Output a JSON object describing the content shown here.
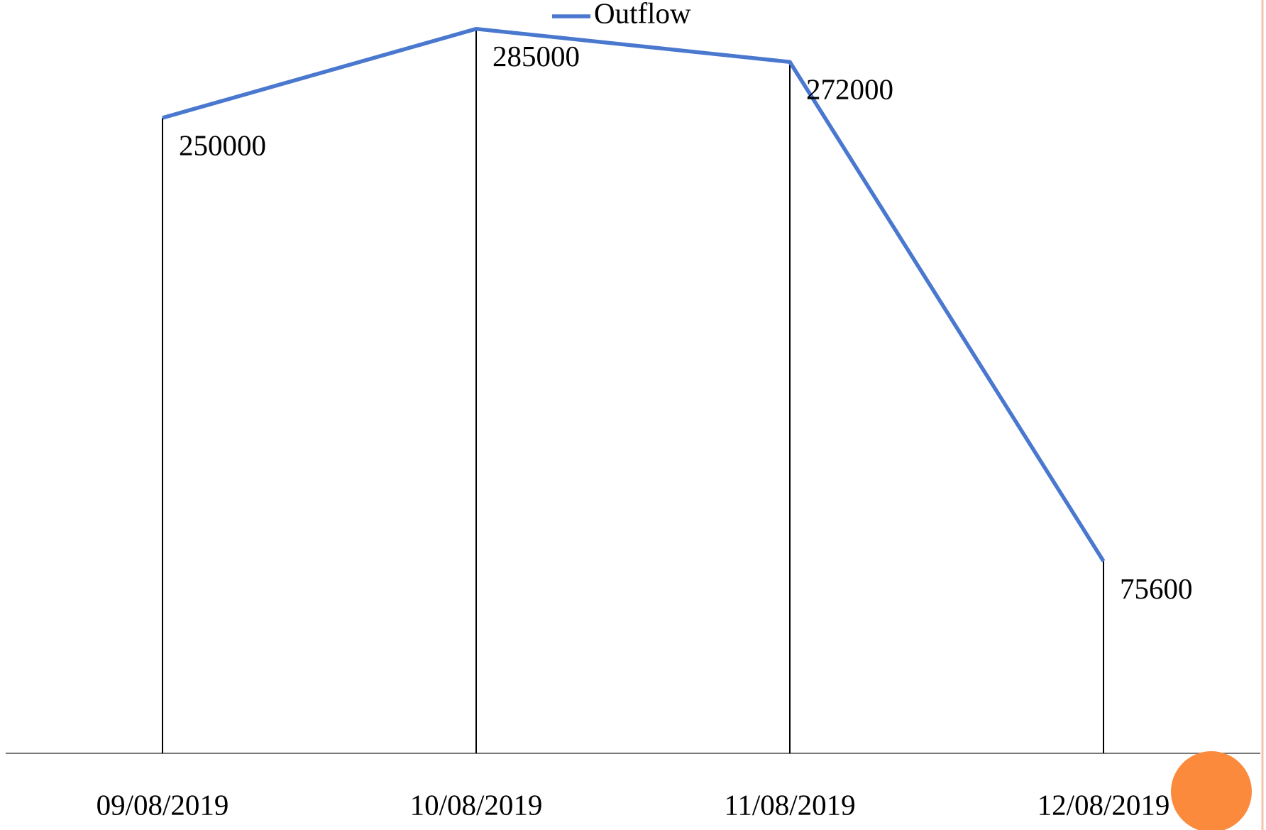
{
  "chart_data": {
    "type": "line",
    "categories": [
      "09/08/2019",
      "10/08/2019",
      "11/08/2019",
      "12/08/2019"
    ],
    "series": [
      {
        "name": "Outflow",
        "color": "#4a78cf",
        "values": [
          250000,
          285000,
          272000,
          75600
        ]
      }
    ],
    "ylim": [
      0,
      300000
    ],
    "drop_lines": true,
    "legend": "top"
  }
}
